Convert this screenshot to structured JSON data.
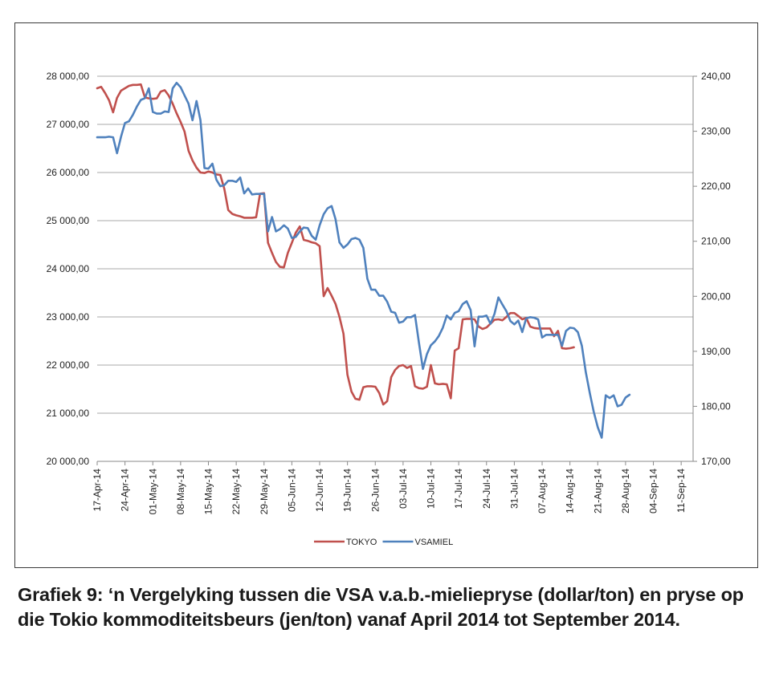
{
  "caption": "Grafiek 9: ‘n Vergelyking tussen die VSA v.a.b.-mieliepryse (dollar/ton) en pryse op die Tokio kommoditeitsbeurs (jen/ton) vanaf April 2014 tot September 2014.",
  "chart_data": {
    "type": "line",
    "grid": "horizontal",
    "legend_position": "bottom",
    "x_tick_labels": [
      "17-Apr-14",
      "24-Apr-14",
      "01-May-14",
      "08-May-14",
      "15-May-14",
      "22-May-14",
      "29-May-14",
      "05-Jun-14",
      "12-Jun-14",
      "19-Jun-14",
      "26-Jun-14",
      "03-Jul-14",
      "10-Jul-14",
      "17-Jul-14",
      "24-Jul-14",
      "31-Jul-14",
      "07-Aug-14",
      "14-Aug-14",
      "21-Aug-14",
      "28-Aug-14",
      "04-Sep-14",
      "11-Sep-14"
    ],
    "x_tick_days": [
      0,
      7,
      14,
      21,
      28,
      35,
      42,
      49,
      56,
      63,
      70,
      77,
      84,
      91,
      98,
      105,
      112,
      119,
      126,
      133,
      140,
      147
    ],
    "x_range_days": [
      0,
      150
    ],
    "y_left": {
      "ticks": [
        20000,
        21000,
        22000,
        23000,
        24000,
        25000,
        26000,
        27000,
        28000
      ],
      "tick_labels": [
        "20 000,00",
        "21 000,00",
        "22 000,00",
        "23 000,00",
        "24 000,00",
        "25 000,00",
        "26 000,00",
        "27 000,00",
        "28 000,00"
      ],
      "range": [
        20000,
        28000
      ]
    },
    "y_right": {
      "ticks": [
        170,
        180,
        190,
        200,
        210,
        220,
        230,
        240
      ],
      "tick_labels": [
        "170,00",
        "180,00",
        "190,00",
        "200,00",
        "210,00",
        "220,00",
        "230,00",
        "240,00"
      ],
      "range": [
        170,
        240
      ]
    },
    "series": [
      {
        "name": "TOKYO",
        "axis": "left",
        "color": "#c0504d",
        "points": [
          [
            0,
            27750
          ],
          [
            1,
            27780
          ],
          [
            2,
            27650
          ],
          [
            3,
            27500
          ],
          [
            4,
            27250
          ],
          [
            5,
            27550
          ],
          [
            6,
            27700
          ],
          [
            7,
            27750
          ],
          [
            8,
            27800
          ],
          [
            9,
            27820
          ],
          [
            10,
            27820
          ],
          [
            11,
            27830
          ],
          [
            12,
            27560
          ],
          [
            13,
            27540
          ],
          [
            14,
            27530
          ],
          [
            15,
            27540
          ],
          [
            16,
            27680
          ],
          [
            17,
            27710
          ],
          [
            18,
            27600
          ],
          [
            19,
            27430
          ],
          [
            20,
            27230
          ],
          [
            21,
            27050
          ],
          [
            22,
            26850
          ],
          [
            23,
            26450
          ],
          [
            24,
            26250
          ],
          [
            25,
            26100
          ],
          [
            26,
            26000
          ],
          [
            27,
            25990
          ],
          [
            28,
            26020
          ],
          [
            29,
            26000
          ],
          [
            30,
            25960
          ],
          [
            31,
            25950
          ],
          [
            32,
            25660
          ],
          [
            33,
            25220
          ],
          [
            34,
            25140
          ],
          [
            35,
            25110
          ],
          [
            36,
            25090
          ],
          [
            37,
            25060
          ],
          [
            38,
            25060
          ],
          [
            39,
            25060
          ],
          [
            40,
            25070
          ],
          [
            41,
            25560
          ],
          [
            42,
            25570
          ],
          [
            43,
            24540
          ],
          [
            44,
            24330
          ],
          [
            45,
            24140
          ],
          [
            46,
            24040
          ],
          [
            47,
            24030
          ],
          [
            48,
            24330
          ],
          [
            49,
            24540
          ],
          [
            50,
            24750
          ],
          [
            51,
            24880
          ],
          [
            52,
            24600
          ],
          [
            53,
            24580
          ],
          [
            54,
            24550
          ],
          [
            55,
            24530
          ],
          [
            56,
            24470
          ],
          [
            57,
            23430
          ],
          [
            58,
            23600
          ],
          [
            59,
            23440
          ],
          [
            60,
            23270
          ],
          [
            61,
            23000
          ],
          [
            62,
            22650
          ],
          [
            63,
            21800
          ],
          [
            64,
            21450
          ],
          [
            65,
            21300
          ],
          [
            66,
            21280
          ],
          [
            67,
            21540
          ],
          [
            68,
            21560
          ],
          [
            69,
            21560
          ],
          [
            70,
            21550
          ],
          [
            71,
            21420
          ],
          [
            72,
            21180
          ],
          [
            73,
            21250
          ],
          [
            74,
            21750
          ],
          [
            75,
            21900
          ],
          [
            76,
            21980
          ],
          [
            77,
            22000
          ],
          [
            78,
            21940
          ],
          [
            79,
            21980
          ],
          [
            80,
            21560
          ],
          [
            81,
            21520
          ],
          [
            82,
            21510
          ],
          [
            83,
            21550
          ],
          [
            84,
            22000
          ],
          [
            85,
            21620
          ],
          [
            86,
            21600
          ],
          [
            87,
            21610
          ],
          [
            88,
            21600
          ],
          [
            89,
            21310
          ],
          [
            90,
            22300
          ],
          [
            91,
            22350
          ],
          [
            92,
            22950
          ],
          [
            93,
            22960
          ],
          [
            94,
            22960
          ],
          [
            95,
            22950
          ],
          [
            96,
            22800
          ],
          [
            97,
            22750
          ],
          [
            98,
            22780
          ],
          [
            99,
            22860
          ],
          [
            100,
            22940
          ],
          [
            101,
            22950
          ],
          [
            102,
            22930
          ],
          [
            103,
            23000
          ],
          [
            104,
            23080
          ],
          [
            105,
            23080
          ],
          [
            106,
            23020
          ],
          [
            107,
            22950
          ],
          [
            108,
            22980
          ],
          [
            109,
            22800
          ],
          [
            110,
            22770
          ],
          [
            111,
            22760
          ],
          [
            112,
            22760
          ],
          [
            113,
            22760
          ],
          [
            114,
            22760
          ],
          [
            115,
            22600
          ],
          [
            116,
            22710
          ],
          [
            117,
            22350
          ],
          [
            118,
            22340
          ],
          [
            119,
            22350
          ],
          [
            120,
            22370
          ]
        ]
      },
      {
        "name": "VSAMIEL",
        "axis": "right",
        "color": "#4f81bd",
        "points": [
          [
            0,
            228.9
          ],
          [
            2,
            228.9
          ],
          [
            3,
            229.0
          ],
          [
            4,
            228.9
          ],
          [
            5,
            226.0
          ],
          [
            6,
            229.0
          ],
          [
            7,
            231.5
          ],
          [
            8,
            231.8
          ],
          [
            9,
            233.0
          ],
          [
            10,
            234.5
          ],
          [
            11,
            235.7
          ],
          [
            12,
            236.0
          ],
          [
            13,
            237.8
          ],
          [
            14,
            233.5
          ],
          [
            15,
            233.2
          ],
          [
            16,
            233.2
          ],
          [
            17,
            233.6
          ],
          [
            18,
            233.5
          ],
          [
            19,
            237.8
          ],
          [
            20,
            238.8
          ],
          [
            21,
            238.0
          ],
          [
            22,
            236.5
          ],
          [
            23,
            235.0
          ],
          [
            24,
            232.0
          ],
          [
            25,
            235.5
          ],
          [
            26,
            232.0
          ],
          [
            27,
            223.3
          ],
          [
            28,
            223.2
          ],
          [
            29,
            224.1
          ],
          [
            30,
            221.2
          ],
          [
            31,
            220.0
          ],
          [
            32,
            220.2
          ],
          [
            33,
            221.0
          ],
          [
            34,
            221.0
          ],
          [
            35,
            220.8
          ],
          [
            36,
            221.6
          ],
          [
            37,
            218.7
          ],
          [
            38,
            219.6
          ],
          [
            39,
            218.5
          ],
          [
            40,
            218.6
          ],
          [
            41,
            218.6
          ],
          [
            42,
            218.6
          ],
          [
            43,
            211.8
          ],
          [
            44,
            214.4
          ],
          [
            45,
            211.8
          ],
          [
            46,
            212.2
          ],
          [
            47,
            212.9
          ],
          [
            48,
            212.3
          ],
          [
            49,
            210.6
          ],
          [
            50,
            210.8
          ],
          [
            51,
            211.8
          ],
          [
            52,
            212.5
          ],
          [
            53,
            212.4
          ],
          [
            54,
            211.0
          ],
          [
            55,
            210.3
          ],
          [
            56,
            212.9
          ],
          [
            57,
            214.9
          ],
          [
            58,
            216.0
          ],
          [
            59,
            216.4
          ],
          [
            60,
            214.0
          ],
          [
            61,
            209.8
          ],
          [
            62,
            208.8
          ],
          [
            63,
            209.4
          ],
          [
            64,
            210.4
          ],
          [
            65,
            210.6
          ],
          [
            66,
            210.3
          ],
          [
            67,
            208.8
          ],
          [
            68,
            203.2
          ],
          [
            69,
            201.2
          ],
          [
            70,
            201.2
          ],
          [
            71,
            200.1
          ],
          [
            72,
            200.1
          ],
          [
            73,
            199.0
          ],
          [
            74,
            197.2
          ],
          [
            75,
            197.0
          ],
          [
            76,
            195.2
          ],
          [
            77,
            195.4
          ],
          [
            78,
            196.2
          ],
          [
            79,
            196.2
          ],
          [
            80,
            196.6
          ],
          [
            81,
            191.5
          ],
          [
            82,
            186.8
          ],
          [
            83,
            189.5
          ],
          [
            84,
            191.1
          ],
          [
            85,
            191.8
          ],
          [
            86,
            192.8
          ],
          [
            87,
            194.3
          ],
          [
            88,
            196.5
          ],
          [
            89,
            195.8
          ],
          [
            90,
            197.0
          ],
          [
            91,
            197.3
          ],
          [
            92,
            198.6
          ],
          [
            93,
            199.1
          ],
          [
            94,
            197.5
          ],
          [
            95,
            190.9
          ],
          [
            96,
            196.3
          ],
          [
            97,
            196.3
          ],
          [
            98,
            196.5
          ],
          [
            99,
            195.0
          ],
          [
            100,
            196.8
          ],
          [
            101,
            199.8
          ],
          [
            102,
            198.5
          ],
          [
            103,
            197.3
          ],
          [
            104,
            195.5
          ],
          [
            105,
            194.9
          ],
          [
            106,
            195.6
          ],
          [
            107,
            193.5
          ],
          [
            108,
            196.0
          ],
          [
            109,
            196.2
          ],
          [
            110,
            196.1
          ],
          [
            111,
            195.8
          ],
          [
            112,
            192.5
          ],
          [
            113,
            193.0
          ],
          [
            114,
            193.0
          ],
          [
            115,
            193.0
          ],
          [
            116,
            193.0
          ],
          [
            117,
            191.0
          ],
          [
            118,
            193.7
          ],
          [
            119,
            194.3
          ],
          [
            120,
            194.2
          ],
          [
            121,
            193.5
          ],
          [
            122,
            191.0
          ],
          [
            123,
            186.2
          ],
          [
            124,
            182.4
          ],
          [
            125,
            179.0
          ],
          [
            126,
            176.2
          ],
          [
            127,
            174.3
          ],
          [
            128,
            182.0
          ],
          [
            129,
            181.5
          ],
          [
            130,
            182.0
          ],
          [
            131,
            180.0
          ],
          [
            132,
            180.3
          ],
          [
            133,
            181.6
          ],
          [
            134,
            182.1
          ]
        ]
      }
    ]
  }
}
